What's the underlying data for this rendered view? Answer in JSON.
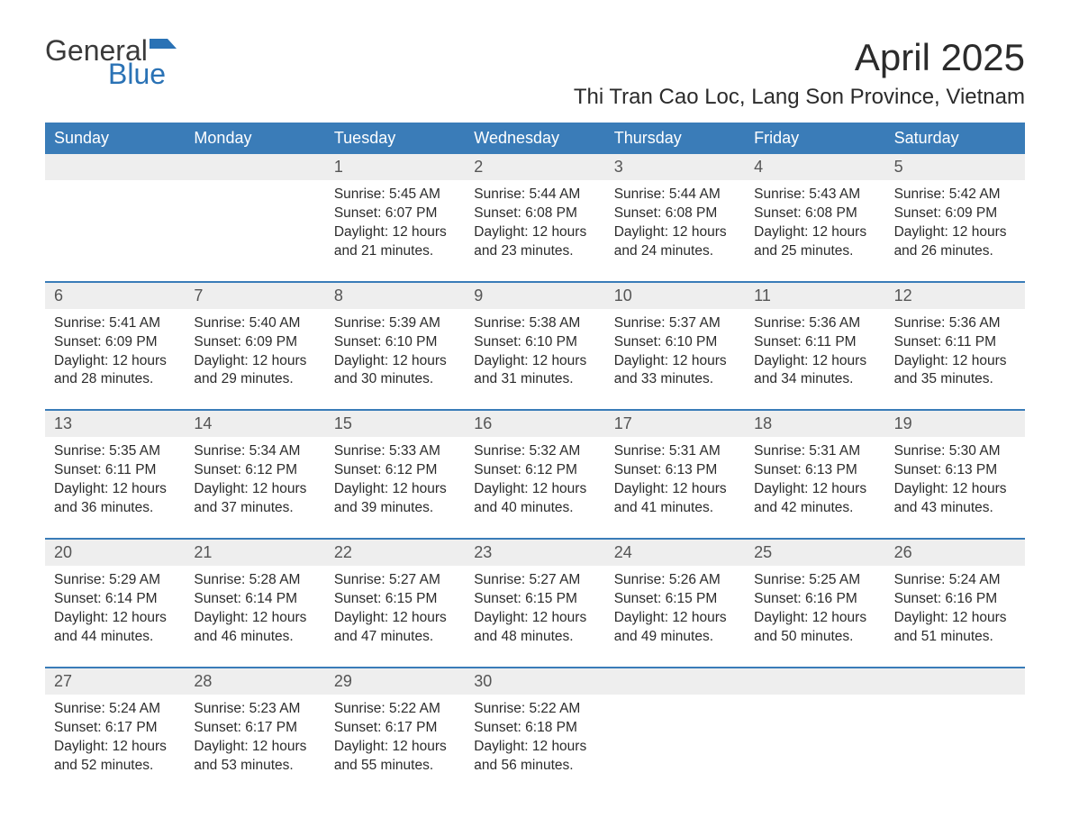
{
  "branding": {
    "logo_text_1": "General",
    "logo_text_2": "Blue",
    "logo_color_1": "#3a3a3a",
    "logo_color_2": "#2a72b5",
    "flag_color": "#2a72b5"
  },
  "title": {
    "month_year": "April 2025",
    "location": "Thi Tran Cao Loc, Lang Son Province, Vietnam",
    "month_fontsize": 42,
    "location_fontsize": 24,
    "text_color": "#2b2b2b"
  },
  "calendar": {
    "header_bg": "#3a7cb8",
    "header_text_color": "#ffffff",
    "daynum_bg": "#eeeeee",
    "daynum_text_color": "#555555",
    "week_divider_color": "#3a7cb8",
    "body_text_color": "#2b2b2b",
    "background_color": "#ffffff",
    "columns": [
      "Sunday",
      "Monday",
      "Tuesday",
      "Wednesday",
      "Thursday",
      "Friday",
      "Saturday"
    ],
    "weeks": [
      [
        {
          "day": "",
          "sunrise": "",
          "sunset": "",
          "daylight": ""
        },
        {
          "day": "",
          "sunrise": "",
          "sunset": "",
          "daylight": ""
        },
        {
          "day": "1",
          "sunrise": "Sunrise: 5:45 AM",
          "sunset": "Sunset: 6:07 PM",
          "daylight": "Daylight: 12 hours and 21 minutes."
        },
        {
          "day": "2",
          "sunrise": "Sunrise: 5:44 AM",
          "sunset": "Sunset: 6:08 PM",
          "daylight": "Daylight: 12 hours and 23 minutes."
        },
        {
          "day": "3",
          "sunrise": "Sunrise: 5:44 AM",
          "sunset": "Sunset: 6:08 PM",
          "daylight": "Daylight: 12 hours and 24 minutes."
        },
        {
          "day": "4",
          "sunrise": "Sunrise: 5:43 AM",
          "sunset": "Sunset: 6:08 PM",
          "daylight": "Daylight: 12 hours and 25 minutes."
        },
        {
          "day": "5",
          "sunrise": "Sunrise: 5:42 AM",
          "sunset": "Sunset: 6:09 PM",
          "daylight": "Daylight: 12 hours and 26 minutes."
        }
      ],
      [
        {
          "day": "6",
          "sunrise": "Sunrise: 5:41 AM",
          "sunset": "Sunset: 6:09 PM",
          "daylight": "Daylight: 12 hours and 28 minutes."
        },
        {
          "day": "7",
          "sunrise": "Sunrise: 5:40 AM",
          "sunset": "Sunset: 6:09 PM",
          "daylight": "Daylight: 12 hours and 29 minutes."
        },
        {
          "day": "8",
          "sunrise": "Sunrise: 5:39 AM",
          "sunset": "Sunset: 6:10 PM",
          "daylight": "Daylight: 12 hours and 30 minutes."
        },
        {
          "day": "9",
          "sunrise": "Sunrise: 5:38 AM",
          "sunset": "Sunset: 6:10 PM",
          "daylight": "Daylight: 12 hours and 31 minutes."
        },
        {
          "day": "10",
          "sunrise": "Sunrise: 5:37 AM",
          "sunset": "Sunset: 6:10 PM",
          "daylight": "Daylight: 12 hours and 33 minutes."
        },
        {
          "day": "11",
          "sunrise": "Sunrise: 5:36 AM",
          "sunset": "Sunset: 6:11 PM",
          "daylight": "Daylight: 12 hours and 34 minutes."
        },
        {
          "day": "12",
          "sunrise": "Sunrise: 5:36 AM",
          "sunset": "Sunset: 6:11 PM",
          "daylight": "Daylight: 12 hours and 35 minutes."
        }
      ],
      [
        {
          "day": "13",
          "sunrise": "Sunrise: 5:35 AM",
          "sunset": "Sunset: 6:11 PM",
          "daylight": "Daylight: 12 hours and 36 minutes."
        },
        {
          "day": "14",
          "sunrise": "Sunrise: 5:34 AM",
          "sunset": "Sunset: 6:12 PM",
          "daylight": "Daylight: 12 hours and 37 minutes."
        },
        {
          "day": "15",
          "sunrise": "Sunrise: 5:33 AM",
          "sunset": "Sunset: 6:12 PM",
          "daylight": "Daylight: 12 hours and 39 minutes."
        },
        {
          "day": "16",
          "sunrise": "Sunrise: 5:32 AM",
          "sunset": "Sunset: 6:12 PM",
          "daylight": "Daylight: 12 hours and 40 minutes."
        },
        {
          "day": "17",
          "sunrise": "Sunrise: 5:31 AM",
          "sunset": "Sunset: 6:13 PM",
          "daylight": "Daylight: 12 hours and 41 minutes."
        },
        {
          "day": "18",
          "sunrise": "Sunrise: 5:31 AM",
          "sunset": "Sunset: 6:13 PM",
          "daylight": "Daylight: 12 hours and 42 minutes."
        },
        {
          "day": "19",
          "sunrise": "Sunrise: 5:30 AM",
          "sunset": "Sunset: 6:13 PM",
          "daylight": "Daylight: 12 hours and 43 minutes."
        }
      ],
      [
        {
          "day": "20",
          "sunrise": "Sunrise: 5:29 AM",
          "sunset": "Sunset: 6:14 PM",
          "daylight": "Daylight: 12 hours and 44 minutes."
        },
        {
          "day": "21",
          "sunrise": "Sunrise: 5:28 AM",
          "sunset": "Sunset: 6:14 PM",
          "daylight": "Daylight: 12 hours and 46 minutes."
        },
        {
          "day": "22",
          "sunrise": "Sunrise: 5:27 AM",
          "sunset": "Sunset: 6:15 PM",
          "daylight": "Daylight: 12 hours and 47 minutes."
        },
        {
          "day": "23",
          "sunrise": "Sunrise: 5:27 AM",
          "sunset": "Sunset: 6:15 PM",
          "daylight": "Daylight: 12 hours and 48 minutes."
        },
        {
          "day": "24",
          "sunrise": "Sunrise: 5:26 AM",
          "sunset": "Sunset: 6:15 PM",
          "daylight": "Daylight: 12 hours and 49 minutes."
        },
        {
          "day": "25",
          "sunrise": "Sunrise: 5:25 AM",
          "sunset": "Sunset: 6:16 PM",
          "daylight": "Daylight: 12 hours and 50 minutes."
        },
        {
          "day": "26",
          "sunrise": "Sunrise: 5:24 AM",
          "sunset": "Sunset: 6:16 PM",
          "daylight": "Daylight: 12 hours and 51 minutes."
        }
      ],
      [
        {
          "day": "27",
          "sunrise": "Sunrise: 5:24 AM",
          "sunset": "Sunset: 6:17 PM",
          "daylight": "Daylight: 12 hours and 52 minutes."
        },
        {
          "day": "28",
          "sunrise": "Sunrise: 5:23 AM",
          "sunset": "Sunset: 6:17 PM",
          "daylight": "Daylight: 12 hours and 53 minutes."
        },
        {
          "day": "29",
          "sunrise": "Sunrise: 5:22 AM",
          "sunset": "Sunset: 6:17 PM",
          "daylight": "Daylight: 12 hours and 55 minutes."
        },
        {
          "day": "30",
          "sunrise": "Sunrise: 5:22 AM",
          "sunset": "Sunset: 6:18 PM",
          "daylight": "Daylight: 12 hours and 56 minutes."
        },
        {
          "day": "",
          "sunrise": "",
          "sunset": "",
          "daylight": ""
        },
        {
          "day": "",
          "sunrise": "",
          "sunset": "",
          "daylight": ""
        },
        {
          "day": "",
          "sunrise": "",
          "sunset": "",
          "daylight": ""
        }
      ]
    ]
  }
}
